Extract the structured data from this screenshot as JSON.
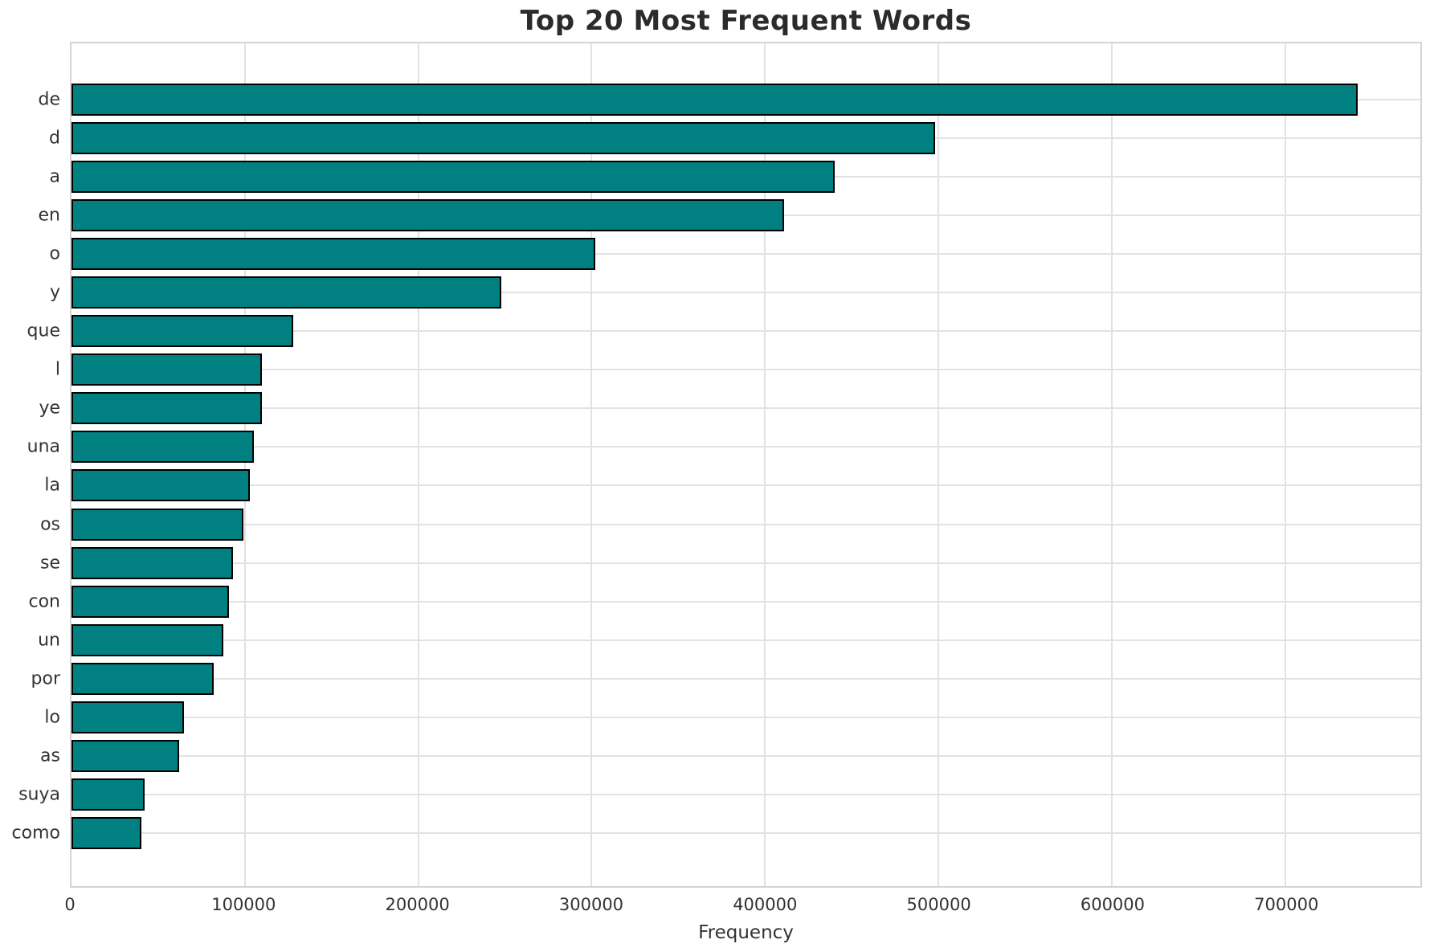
{
  "chart_data": {
    "type": "bar",
    "orientation": "horizontal",
    "title": "Top 20 Most Frequent Words",
    "xlabel": "Frequency",
    "ylabel": "",
    "categories": [
      "de",
      "d",
      "a",
      "en",
      "o",
      "y",
      "que",
      "l",
      "ye",
      "una",
      "la",
      "os",
      "se",
      "con",
      "un",
      "por",
      "lo",
      "as",
      "suya",
      "como"
    ],
    "values": [
      742000,
      498000,
      440000,
      411000,
      302000,
      248000,
      128000,
      110000,
      110000,
      105000,
      103000,
      99000,
      93000,
      91000,
      87500,
      82000,
      65000,
      62000,
      42000,
      40500
    ],
    "xlim": [
      0,
      778000
    ],
    "xticks": [
      0,
      100000,
      200000,
      300000,
      400000,
      500000,
      600000,
      700000
    ],
    "xtick_labels": [
      "0",
      "100000",
      "200000",
      "300000",
      "400000",
      "500000",
      "600000",
      "700000"
    ],
    "grid": true,
    "legend": null,
    "style": {
      "bar_color": "#008080",
      "bar_edge_color": "#000000",
      "grid_color": "#e2e2e2",
      "spine_color": "#d4d4d4",
      "title_color": "#2b2b2b",
      "tick_color": "#333333",
      "background": "#ffffff"
    }
  }
}
